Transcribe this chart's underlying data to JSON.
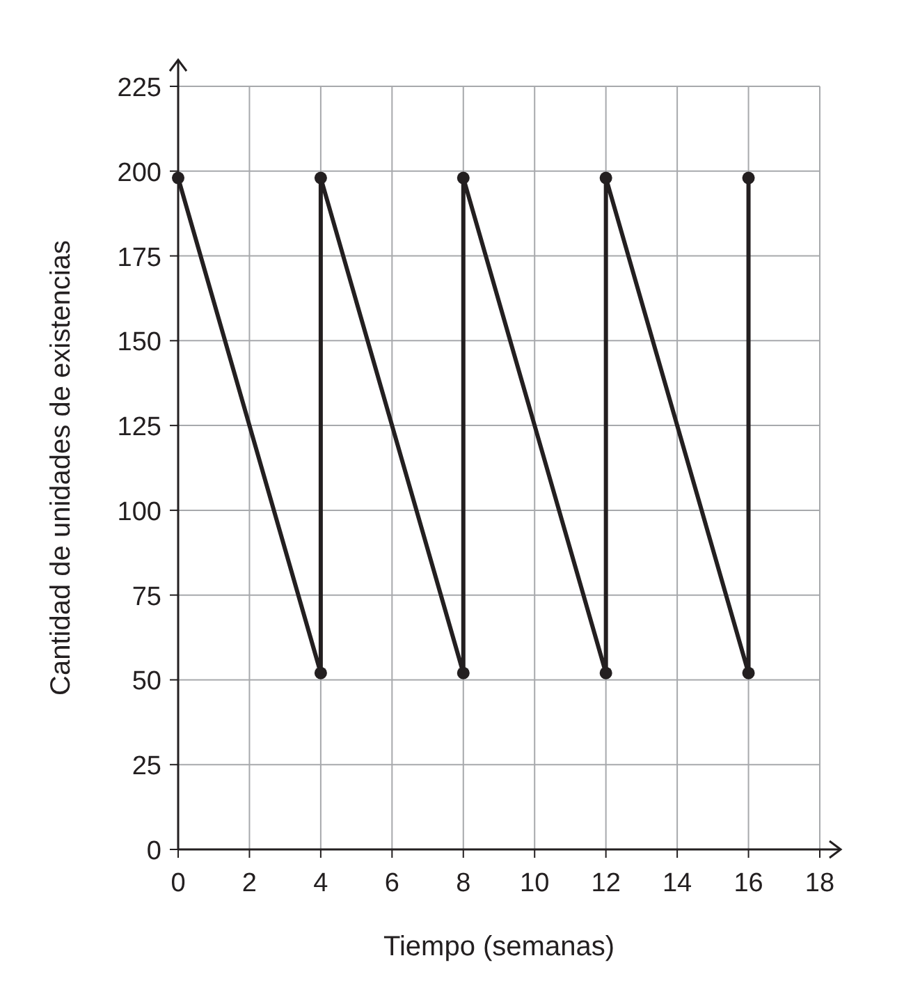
{
  "chart_data": {
    "type": "line",
    "xlabel": "Tiempo (semanas)",
    "ylabel": "Cantidad de unidades de existencias",
    "series": [
      {
        "color": "#231f20",
        "x": [
          0,
          4,
          4,
          8,
          8,
          12,
          12,
          16,
          16
        ],
        "values": [
          198,
          52,
          198,
          52,
          198,
          52,
          198,
          52,
          198
        ]
      }
    ],
    "xlim": [
      0,
      18
    ],
    "ylim": [
      0,
      225
    ],
    "xticks": [
      0,
      2,
      4,
      6,
      8,
      10,
      12,
      14,
      16,
      18
    ],
    "yticks": [
      0,
      25,
      50,
      75,
      100,
      125,
      150,
      175,
      200,
      225
    ],
    "grid": true,
    "marker": "circle",
    "line_style": "solid"
  }
}
